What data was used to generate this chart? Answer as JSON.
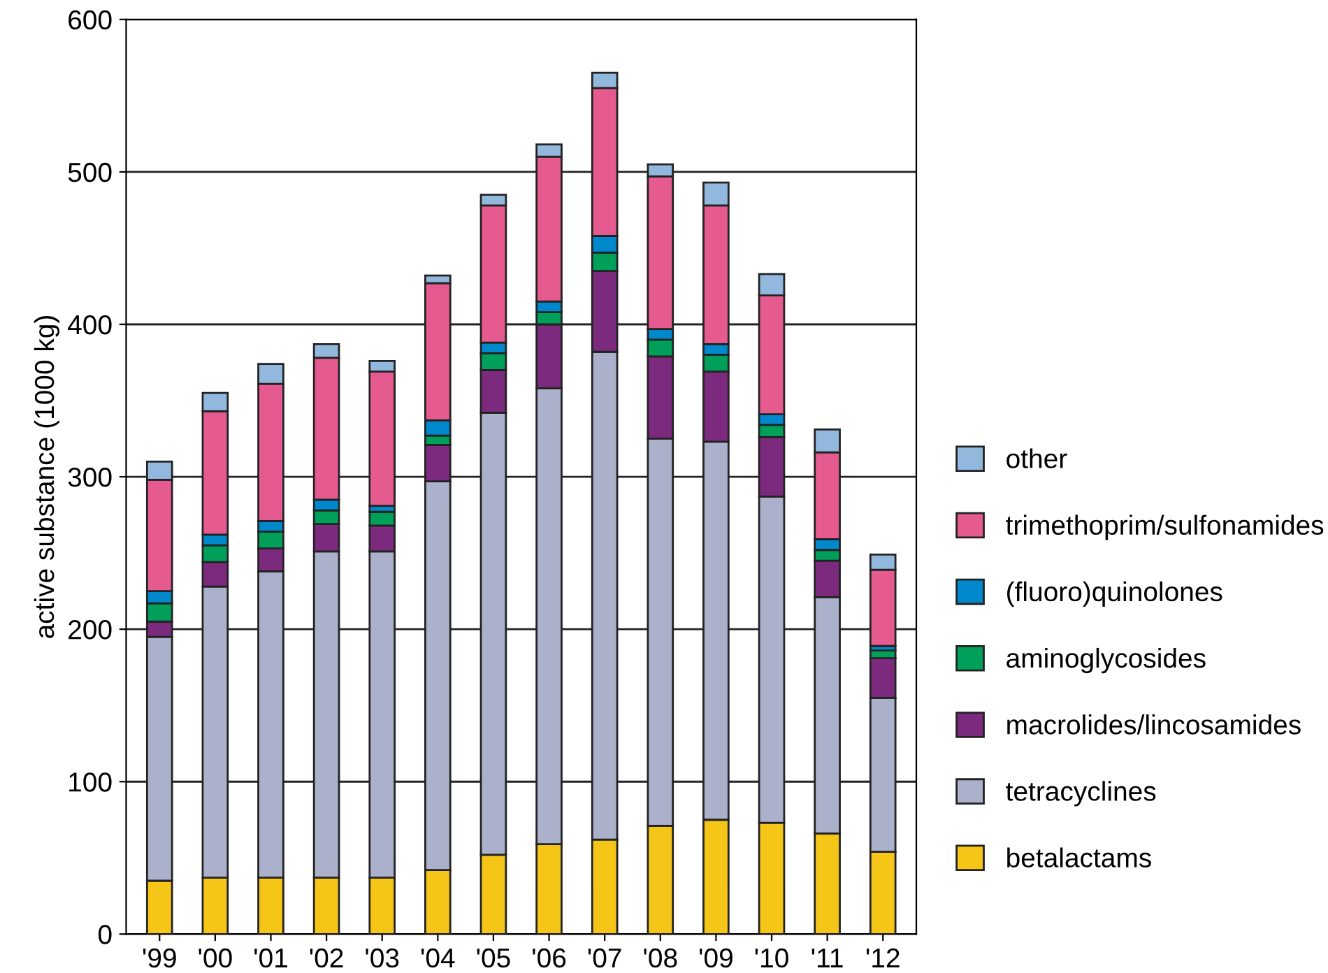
{
  "chart_data": {
    "type": "bar",
    "stacked": true,
    "ylabel": "active substance (1000 kg)",
    "categories": [
      "'99",
      "'00",
      "'01",
      "'02",
      "'03",
      "'04",
      "'05",
      "'06",
      "'07",
      "'08",
      "'09",
      "'10",
      "'11",
      "'12"
    ],
    "series": [
      {
        "name": "betalactams",
        "color": "#f5c518",
        "values": [
          35,
          37,
          37,
          37,
          37,
          42,
          52,
          59,
          62,
          71,
          75,
          73,
          66,
          54
        ]
      },
      {
        "name": "tetracyclines",
        "color": "#abb0cb",
        "values": [
          160,
          191,
          201,
          214,
          214,
          255,
          290,
          299,
          320,
          254,
          248,
          214,
          155,
          101
        ]
      },
      {
        "name": "macrolides/lincosamides",
        "color": "#7b2a7e",
        "values": [
          10,
          16,
          15,
          18,
          17,
          24,
          28,
          42,
          53,
          54,
          46,
          39,
          24,
          26
        ]
      },
      {
        "name": "aminoglycosides",
        "color": "#00a05a",
        "values": [
          12,
          11,
          11,
          9,
          9,
          6,
          11,
          8,
          12,
          11,
          11,
          8,
          7,
          5
        ]
      },
      {
        "name": "(fluoro)quinolones",
        "color": "#0088cc",
        "values": [
          8,
          7,
          7,
          7,
          4,
          10,
          7,
          7,
          11,
          7,
          7,
          7,
          7,
          3
        ]
      },
      {
        "name": "trimethoprim/sulfonamides",
        "color": "#e55a8f",
        "values": [
          73,
          81,
          90,
          93,
          88,
          90,
          90,
          95,
          97,
          100,
          91,
          78,
          57,
          50
        ]
      },
      {
        "name": "other",
        "color": "#92b8de",
        "values": [
          12,
          12,
          13,
          9,
          7,
          5,
          7,
          8,
          10,
          8,
          15,
          14,
          15,
          10
        ]
      }
    ],
    "ylim": [
      0,
      600
    ],
    "yticks": [
      0,
      100,
      200,
      300,
      400,
      500,
      600
    ],
    "grid": "y",
    "legend": "right"
  }
}
